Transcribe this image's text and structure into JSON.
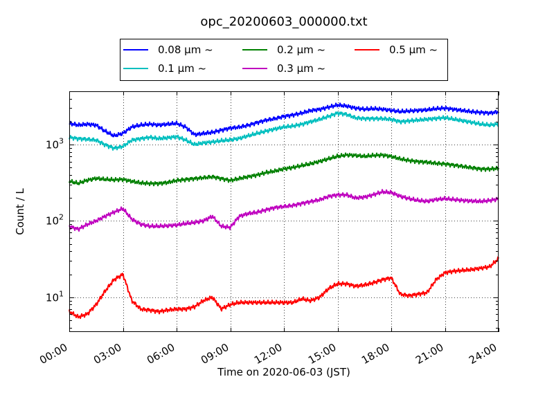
{
  "chart_data": {
    "type": "line",
    "title": "opc_20200603_000000.txt",
    "xlabel": "Time on 2020-06-03 (JST)",
    "ylabel": "Count / L",
    "yscale": "log",
    "xlim": [
      "00:00",
      "24:00"
    ],
    "ylim": [
      3.5,
      5000
    ],
    "grid": true,
    "legend_position": "top",
    "x_ticks": [
      "00:00",
      "03:00",
      "06:00",
      "09:00",
      "12:00",
      "15:00",
      "18:00",
      "21:00",
      "24:00"
    ],
    "y_ticks": [
      {
        "value": 10,
        "base": "10",
        "exp": "1"
      },
      {
        "value": 100,
        "base": "10",
        "exp": "2"
      },
      {
        "value": 1000,
        "base": "10",
        "exp": "3"
      }
    ],
    "x": [
      "00:00",
      "00:30",
      "01:00",
      "01:30",
      "02:00",
      "02:30",
      "03:00",
      "03:30",
      "04:00",
      "04:30",
      "05:00",
      "05:30",
      "06:00",
      "06:30",
      "07:00",
      "07:30",
      "08:00",
      "08:30",
      "09:00",
      "09:30",
      "10:00",
      "10:30",
      "11:00",
      "11:30",
      "12:00",
      "12:30",
      "13:00",
      "13:30",
      "14:00",
      "14:30",
      "15:00",
      "15:30",
      "16:00",
      "16:30",
      "17:00",
      "17:30",
      "18:00",
      "18:30",
      "19:00",
      "19:30",
      "20:00",
      "20:30",
      "21:00",
      "21:30",
      "22:00",
      "22:30",
      "23:00",
      "23:30",
      "24:00"
    ],
    "series": [
      {
        "name": "0.08 μm ~",
        "color": "#0000ff",
        "values": [
          1900,
          1800,
          1850,
          1800,
          1500,
          1300,
          1400,
          1700,
          1800,
          1850,
          1800,
          1850,
          1900,
          1700,
          1350,
          1400,
          1450,
          1550,
          1650,
          1700,
          1800,
          1950,
          2100,
          2200,
          2350,
          2450,
          2600,
          2800,
          2900,
          3100,
          3300,
          3200,
          3000,
          2900,
          2950,
          2900,
          2800,
          2700,
          2750,
          2800,
          2850,
          2950,
          3000,
          2900,
          2800,
          2700,
          2650,
          2600,
          2700
        ]
      },
      {
        "name": "0.1 μm ~",
        "color": "#00bfbf",
        "values": [
          1250,
          1200,
          1180,
          1150,
          1000,
          900,
          950,
          1150,
          1200,
          1250,
          1200,
          1230,
          1270,
          1150,
          1000,
          1050,
          1080,
          1120,
          1150,
          1200,
          1300,
          1400,
          1500,
          1600,
          1700,
          1750,
          1850,
          2000,
          2150,
          2350,
          2600,
          2500,
          2250,
          2200,
          2200,
          2200,
          2150,
          2000,
          2050,
          2100,
          2150,
          2200,
          2250,
          2150,
          2050,
          1950,
          1850,
          1800,
          1850
        ]
      },
      {
        "name": "0.2 μm ~",
        "color": "#008000",
        "values": [
          330,
          310,
          340,
          360,
          350,
          345,
          350,
          330,
          315,
          310,
          310,
          320,
          340,
          350,
          360,
          370,
          380,
          360,
          340,
          360,
          380,
          400,
          430,
          450,
          480,
          500,
          530,
          560,
          600,
          650,
          700,
          730,
          720,
          700,
          720,
          730,
          700,
          650,
          620,
          600,
          590,
          570,
          560,
          540,
          520,
          500,
          480,
          480,
          490
        ]
      },
      {
        "name": "0.3 μm ~",
        "color": "#bf00bf",
        "values": [
          85,
          78,
          90,
          100,
          115,
          130,
          145,
          105,
          90,
          85,
          85,
          86,
          88,
          92,
          95,
          100,
          115,
          85,
          82,
          115,
          125,
          130,
          140,
          150,
          155,
          160,
          170,
          180,
          190,
          210,
          220,
          220,
          200,
          205,
          220,
          240,
          235,
          210,
          195,
          185,
          180,
          190,
          195,
          190,
          185,
          182,
          180,
          185,
          195
        ]
      },
      {
        "name": "0.5 μm ~",
        "color": "#ff0000",
        "values": [
          6.5,
          5.5,
          6.0,
          8.0,
          12.0,
          17.0,
          20.0,
          9.0,
          7.0,
          6.8,
          6.5,
          6.8,
          7.0,
          7.0,
          7.5,
          9.0,
          10.0,
          7.0,
          8.0,
          8.5,
          8.5,
          8.5,
          8.5,
          8.5,
          8.5,
          8.5,
          9.5,
          9.0,
          10.0,
          13.0,
          15.0,
          15.0,
          14.0,
          14.5,
          15.5,
          17.0,
          18.0,
          11.0,
          10.5,
          11.0,
          11.5,
          17.0,
          21.0,
          22.0,
          22.5,
          23.0,
          24.0,
          25.0,
          32.0
        ]
      }
    ]
  }
}
